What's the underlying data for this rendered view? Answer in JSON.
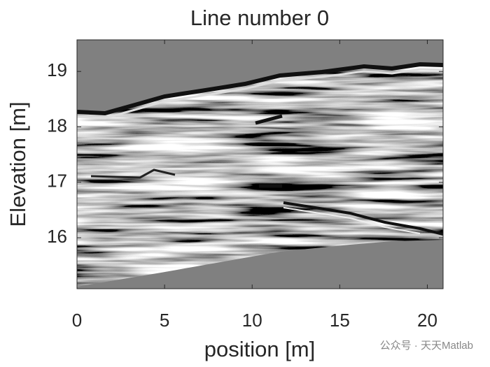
{
  "chart_data": {
    "type": "image",
    "title": "Line number 0",
    "xlabel": "position [m]",
    "ylabel": "Elevation [m]",
    "xlim": [
      0,
      20.9
    ],
    "xticks": [
      0,
      5,
      10,
      15,
      20
    ],
    "ylim": [
      15.08,
      19.57
    ],
    "yticks": [
      16,
      17,
      18,
      19
    ],
    "colormap": "gray",
    "grid": false
  },
  "watermark": "公众号 · 天天Matlab"
}
